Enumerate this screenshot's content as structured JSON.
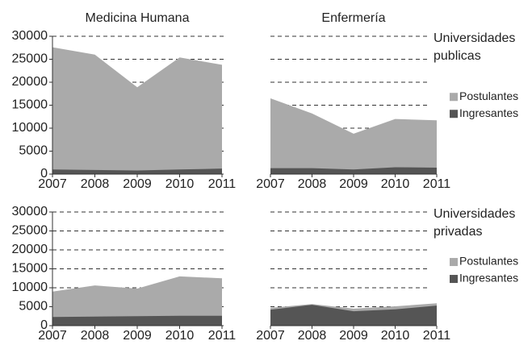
{
  "chart_data": [
    {
      "type": "area",
      "title": "Medicina Humana",
      "x": [
        2007,
        2008,
        2009,
        2010,
        2011
      ],
      "xlim": [
        2007,
        2011
      ],
      "xticks": [
        2007,
        2008,
        2009,
        2010,
        2011
      ],
      "ylim": [
        0,
        30000
      ],
      "yticks": [
        0,
        5000,
        10000,
        15000,
        20000,
        25000,
        30000
      ],
      "ytick_labels": true,
      "grid": true,
      "series": [
        {
          "name": "Postulantes",
          "color": "#aaaaaa",
          "values": [
            27600,
            26000,
            18900,
            25400,
            23800
          ]
        },
        {
          "name": "Ingresantes",
          "color": "#555555",
          "values": [
            1000,
            900,
            800,
            1000,
            1200
          ]
        }
      ]
    },
    {
      "type": "area",
      "title": "Enfermería",
      "annotation": [
        "Universidades",
        "publicas"
      ],
      "legend": true,
      "x": [
        2007,
        2008,
        2009,
        2010,
        2011
      ],
      "xlim": [
        2007,
        2011
      ],
      "xticks": [
        2007,
        2008,
        2009,
        2010,
        2011
      ],
      "ylim": [
        0,
        30000
      ],
      "yticks": [
        0,
        5000,
        10000,
        15000,
        20000,
        25000,
        30000
      ],
      "ytick_labels": false,
      "grid": true,
      "series": [
        {
          "name": "Postulantes",
          "color": "#aaaaaa",
          "values": [
            16500,
            13200,
            8800,
            12000,
            11700
          ]
        },
        {
          "name": "Ingresantes",
          "color": "#555555",
          "values": [
            1300,
            1300,
            1000,
            1500,
            1400
          ]
        }
      ]
    },
    {
      "type": "area",
      "x": [
        2007,
        2008,
        2009,
        2010,
        2011
      ],
      "xlim": [
        2007,
        2011
      ],
      "xticks": [
        2007,
        2008,
        2009,
        2010,
        2011
      ],
      "ylim": [
        0,
        30000
      ],
      "yticks": [
        0,
        5000,
        10000,
        15000,
        20000,
        25000,
        30000
      ],
      "ytick_labels": true,
      "grid": true,
      "series": [
        {
          "name": "Postulantes",
          "color": "#aaaaaa",
          "values": [
            9000,
            10600,
            9800,
            13000,
            12500
          ]
        },
        {
          "name": "Ingresantes",
          "color": "#555555",
          "values": [
            2300,
            2400,
            2500,
            2600,
            2600
          ]
        }
      ]
    },
    {
      "type": "area",
      "annotation": [
        "Universidades",
        "privadas"
      ],
      "legend": true,
      "x": [
        2007,
        2008,
        2009,
        2010,
        2011
      ],
      "xlim": [
        2007,
        2011
      ],
      "xticks": [
        2007,
        2008,
        2009,
        2010,
        2011
      ],
      "ylim": [
        0,
        30000
      ],
      "yticks": [
        0,
        5000,
        10000,
        15000,
        20000,
        25000,
        30000
      ],
      "ytick_labels": false,
      "grid": true,
      "series": [
        {
          "name": "Postulantes",
          "color": "#aaaaaa",
          "values": [
            4700,
            5700,
            4500,
            5100,
            5900
          ]
        },
        {
          "name": "Ingresantes",
          "color": "#555555",
          "values": [
            4200,
            5500,
            3800,
            4300,
            5300
          ]
        }
      ]
    }
  ]
}
